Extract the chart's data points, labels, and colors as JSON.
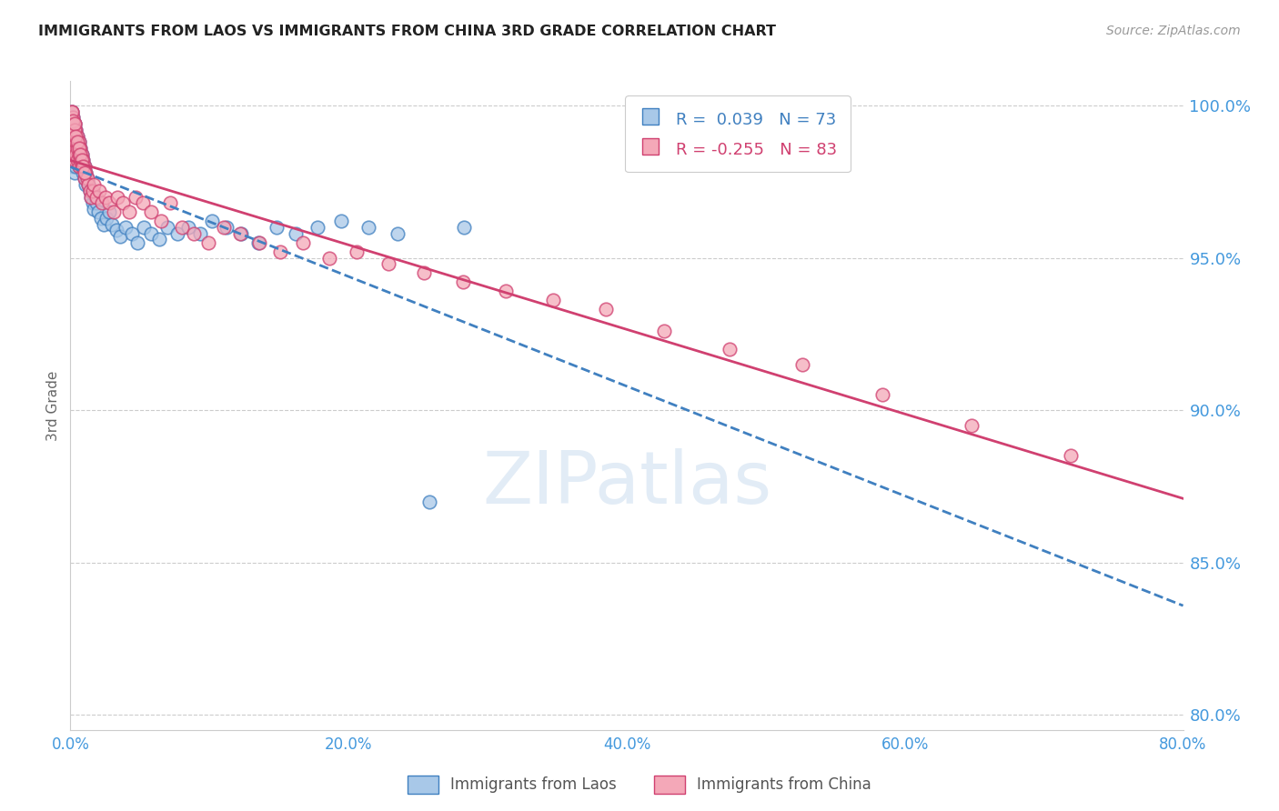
{
  "title": "IMMIGRANTS FROM LAOS VS IMMIGRANTS FROM CHINA 3RD GRADE CORRELATION CHART",
  "source": "Source: ZipAtlas.com",
  "ylabel": "3rd Grade",
  "r_laos": 0.039,
  "n_laos": 73,
  "r_china": -0.255,
  "n_china": 83,
  "color_laos": "#a8c8e8",
  "color_china": "#f4a8b8",
  "trendline_laos": "#4080c0",
  "trendline_china": "#d04070",
  "axis_color": "#4499dd",
  "xmin": 0.0,
  "xmax": 0.8,
  "ymin": 0.795,
  "ymax": 1.008,
  "yticks": [
    0.8,
    0.85,
    0.9,
    0.95,
    1.0
  ],
  "ytick_labels": [
    "80.0%",
    "85.0%",
    "90.0%",
    "95.0%",
    "100.0%"
  ],
  "xticks": [
    0.0,
    0.2,
    0.4,
    0.6,
    0.8
  ],
  "xtick_labels": [
    "0.0%",
    "20.0%",
    "40.0%",
    "60.0%",
    "80.0%"
  ],
  "background_color": "#ffffff",
  "grid_color": "#cccccc",
  "laos_x": [
    0.001,
    0.001,
    0.001,
    0.001,
    0.001,
    0.002,
    0.002,
    0.002,
    0.002,
    0.002,
    0.003,
    0.003,
    0.003,
    0.003,
    0.003,
    0.004,
    0.004,
    0.004,
    0.004,
    0.005,
    0.005,
    0.005,
    0.006,
    0.006,
    0.006,
    0.007,
    0.007,
    0.008,
    0.008,
    0.009,
    0.009,
    0.01,
    0.01,
    0.011,
    0.011,
    0.012,
    0.013,
    0.014,
    0.015,
    0.016,
    0.017,
    0.018,
    0.019,
    0.02,
    0.022,
    0.024,
    0.026,
    0.028,
    0.03,
    0.033,
    0.036,
    0.04,
    0.044,
    0.048,
    0.053,
    0.058,
    0.064,
    0.07,
    0.077,
    0.085,
    0.093,
    0.102,
    0.112,
    0.123,
    0.135,
    0.148,
    0.162,
    0.178,
    0.195,
    0.214,
    0.235,
    0.258,
    0.283
  ],
  "laos_y": [
    0.998,
    0.994,
    0.99,
    0.986,
    0.982,
    0.996,
    0.992,
    0.988,
    0.984,
    0.98,
    0.994,
    0.99,
    0.986,
    0.982,
    0.978,
    0.992,
    0.988,
    0.984,
    0.98,
    0.99,
    0.986,
    0.982,
    0.988,
    0.984,
    0.98,
    0.986,
    0.982,
    0.984,
    0.98,
    0.982,
    0.978,
    0.98,
    0.976,
    0.978,
    0.974,
    0.976,
    0.974,
    0.972,
    0.97,
    0.968,
    0.966,
    0.97,
    0.968,
    0.965,
    0.963,
    0.961,
    0.963,
    0.965,
    0.961,
    0.959,
    0.957,
    0.96,
    0.958,
    0.955,
    0.96,
    0.958,
    0.956,
    0.96,
    0.958,
    0.96,
    0.958,
    0.962,
    0.96,
    0.958,
    0.955,
    0.96,
    0.958,
    0.96,
    0.962,
    0.96,
    0.958,
    0.87,
    0.96
  ],
  "china_x": [
    0.001,
    0.001,
    0.001,
    0.001,
    0.001,
    0.002,
    0.002,
    0.002,
    0.002,
    0.003,
    0.003,
    0.003,
    0.003,
    0.004,
    0.004,
    0.004,
    0.005,
    0.005,
    0.005,
    0.006,
    0.006,
    0.006,
    0.007,
    0.007,
    0.008,
    0.008,
    0.009,
    0.01,
    0.01,
    0.011,
    0.012,
    0.013,
    0.014,
    0.015,
    0.016,
    0.017,
    0.019,
    0.021,
    0.023,
    0.025,
    0.028,
    0.031,
    0.034,
    0.038,
    0.042,
    0.047,
    0.052,
    0.058,
    0.065,
    0.072,
    0.08,
    0.089,
    0.099,
    0.11,
    0.122,
    0.136,
    0.151,
    0.167,
    0.186,
    0.206,
    0.229,
    0.254,
    0.282,
    0.313,
    0.347,
    0.385,
    0.427,
    0.474,
    0.526,
    0.584,
    0.648,
    0.719,
    0.001,
    0.002,
    0.003,
    0.003,
    0.004,
    0.005,
    0.006,
    0.007,
    0.008,
    0.009,
    0.01
  ],
  "china_y": [
    0.998,
    0.994,
    0.99,
    0.986,
    0.982,
    0.996,
    0.992,
    0.988,
    0.984,
    0.994,
    0.99,
    0.986,
    0.982,
    0.992,
    0.988,
    0.984,
    0.99,
    0.986,
    0.982,
    0.988,
    0.984,
    0.98,
    0.986,
    0.982,
    0.984,
    0.98,
    0.982,
    0.98,
    0.976,
    0.978,
    0.976,
    0.974,
    0.972,
    0.97,
    0.972,
    0.974,
    0.97,
    0.972,
    0.968,
    0.97,
    0.968,
    0.965,
    0.97,
    0.968,
    0.965,
    0.97,
    0.968,
    0.965,
    0.962,
    0.968,
    0.96,
    0.958,
    0.955,
    0.96,
    0.958,
    0.955,
    0.952,
    0.955,
    0.95,
    0.952,
    0.948,
    0.945,
    0.942,
    0.939,
    0.936,
    0.933,
    0.926,
    0.92,
    0.915,
    0.905,
    0.895,
    0.885,
    0.998,
    0.995,
    0.992,
    0.994,
    0.99,
    0.988,
    0.986,
    0.984,
    0.982,
    0.98,
    0.978
  ]
}
